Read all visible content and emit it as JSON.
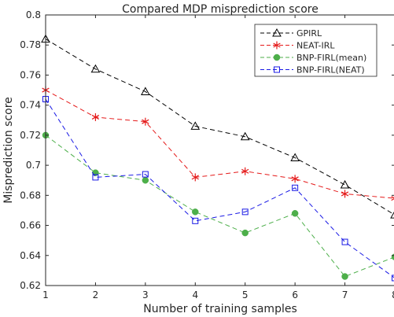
{
  "chart_data": {
    "type": "line",
    "title": "Compared MDP misprediction score",
    "xlabel": "Number of training samples",
    "ylabel": "Misprediction score",
    "xlim": [
      1,
      8
    ],
    "ylim": [
      0.62,
      0.8
    ],
    "xticks": [
      1,
      2,
      3,
      4,
      5,
      6,
      7,
      8
    ],
    "yticks": [
      0.62,
      0.64,
      0.66,
      0.68,
      0.7,
      0.72,
      0.74,
      0.76,
      0.78,
      0.8
    ],
    "ytick_labels": [
      "0.62",
      "0.64",
      "0.66",
      "0.68",
      "0.7",
      "0.72",
      "0.74",
      "0.76",
      "0.78",
      "0.8"
    ],
    "grid": false,
    "legend_position": "top-right",
    "x": [
      1,
      2,
      3,
      4,
      5,
      6,
      7,
      8
    ],
    "series": [
      {
        "name": "GPIRL",
        "color": "#000000",
        "marker": "triangle",
        "line": "dashed",
        "values": [
          0.784,
          0.764,
          0.749,
          0.726,
          0.719,
          0.705,
          0.687,
          0.667
        ]
      },
      {
        "name": "NEAT-IRL",
        "color": "#e51a1a",
        "marker": "asterisk",
        "line": "dashed",
        "values": [
          0.75,
          0.732,
          0.729,
          0.692,
          0.696,
          0.691,
          0.681,
          0.678
        ]
      },
      {
        "name": "BNP-FIRL(mean)",
        "color": "#4daf4a",
        "marker": "circle",
        "line": "dashed",
        "values": [
          0.72,
          0.695,
          0.69,
          0.669,
          0.655,
          0.668,
          0.626,
          0.639
        ]
      },
      {
        "name": "BNP-FIRL(NEAT)",
        "color": "#1a1ae5",
        "marker": "square",
        "line": "dashed",
        "values": [
          0.744,
          0.692,
          0.694,
          0.663,
          0.669,
          0.685,
          0.649,
          0.625
        ]
      }
    ]
  }
}
